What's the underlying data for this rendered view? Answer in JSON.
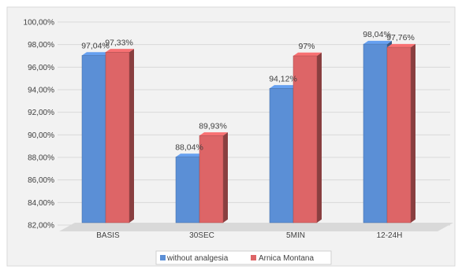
{
  "chart_data": {
    "type": "bar",
    "title": "",
    "xlabel": "",
    "ylabel": "",
    "categories": [
      "BASIS",
      "30SEC",
      "5MIN",
      "12-24H"
    ],
    "series": [
      {
        "name": "without analgesia",
        "values": [
          97.04,
          88.04,
          94.12,
          98.04
        ],
        "labels": [
          "97,04%",
          "88,04%",
          "94,12%",
          "98,04%"
        ],
        "color": "#5b8fd6"
      },
      {
        "name": "Arnica Montana",
        "values": [
          97.33,
          89.93,
          97.0,
          97.76
        ],
        "labels": [
          "97,33%",
          "89,93%",
          "97%",
          "97,76%"
        ],
        "color": "#dd6567"
      }
    ],
    "ylim": [
      82,
      100
    ],
    "yticks": [
      82,
      84,
      86,
      88,
      90,
      92,
      94,
      96,
      98,
      100
    ],
    "ytick_labels": [
      "82,00%",
      "84,00%",
      "86,00%",
      "88,00%",
      "90,00%",
      "92,00%",
      "94,00%",
      "96,00%",
      "98,00%",
      "100,00%"
    ],
    "grid": true,
    "legend_position": "bottom",
    "style": "3d-clustered-column"
  }
}
